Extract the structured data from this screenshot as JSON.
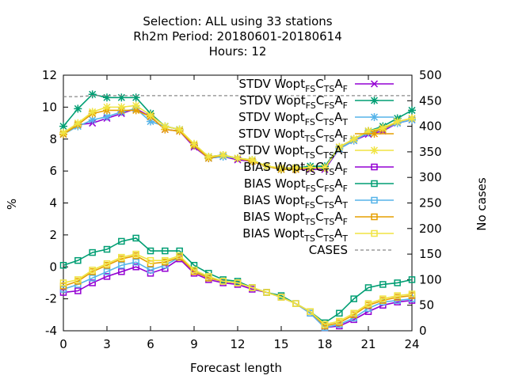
{
  "chart_data": {
    "type": "line",
    "title_lines": [
      "Selection: ALL using    33 stations",
      "Rh2m   Period: 20180601-20180614",
      "Hours:  12"
    ],
    "xlabel": "Forecast length",
    "ylabel": "%",
    "y2label": "No cases",
    "xlim": [
      0,
      24
    ],
    "ylim": [
      -4,
      12
    ],
    "y2lim": [
      0,
      500
    ],
    "xticks": [
      0,
      3,
      6,
      9,
      12,
      15,
      18,
      21,
      24
    ],
    "yticks": [
      -4,
      -2,
      0,
      2,
      4,
      6,
      8,
      10,
      12
    ],
    "y2ticks": [
      0,
      50,
      100,
      150,
      200,
      250,
      300,
      350,
      400,
      450,
      500
    ],
    "legend_position": "top-right",
    "x": [
      0,
      1,
      2,
      3,
      4,
      5,
      6,
      7,
      8,
      9,
      10,
      11,
      12,
      13,
      14,
      15,
      16,
      17,
      18,
      19,
      20,
      21,
      22,
      23,
      24
    ],
    "series": [
      {
        "name_parts": [
          "STDV Wopt",
          "FS",
          "C",
          "TS",
          "A",
          "F"
        ],
        "color": "#9400d3",
        "marker": "x",
        "axis": "y1",
        "values": [
          8.3,
          8.9,
          9.0,
          9.3,
          9.6,
          9.9,
          9.4,
          8.6,
          8.5,
          7.5,
          6.8,
          6.9,
          6.7,
          6.6,
          6.3,
          6.1,
          6.1,
          6.1,
          6.1,
          7.4,
          7.9,
          8.3,
          8.5,
          9.0,
          9.2
        ]
      },
      {
        "name_parts": [
          "STDV Wopt",
          "FS",
          "C",
          "FS",
          "A",
          "F"
        ],
        "color": "#009e73",
        "marker": "*",
        "axis": "y1",
        "values": [
          8.8,
          9.9,
          10.8,
          10.6,
          10.6,
          10.6,
          9.6,
          8.8,
          8.6,
          7.6,
          6.9,
          7.0,
          6.8,
          6.7,
          6.3,
          6.1,
          6.2,
          6.3,
          6.3,
          7.5,
          8.0,
          8.5,
          8.8,
          9.3,
          9.8
        ]
      },
      {
        "name_parts": [
          "STDV Wopt",
          "FS",
          "C",
          "TS",
          "A",
          "T"
        ],
        "color": "#56b4e9",
        "marker": "*",
        "axis": "y1",
        "values": [
          8.3,
          8.8,
          9.2,
          9.4,
          9.7,
          9.9,
          9.1,
          8.8,
          8.6,
          7.6,
          6.8,
          6.9,
          6.8,
          6.6,
          6.3,
          6.1,
          6.1,
          6.2,
          6.2,
          7.4,
          7.9,
          8.4,
          8.6,
          9.0,
          9.2
        ]
      },
      {
        "name_parts": [
          "STDV Wopt",
          "TS",
          "C",
          "TS",
          "A",
          "F"
        ],
        "color": "#e69f00",
        "marker": "*",
        "axis": "y1",
        "values": [
          8.3,
          8.9,
          9.6,
          9.8,
          9.8,
          9.8,
          9.4,
          8.6,
          8.5,
          7.6,
          6.8,
          7.0,
          6.8,
          6.6,
          6.3,
          6.1,
          6.1,
          6.2,
          6.2,
          7.5,
          8.0,
          8.5,
          8.6,
          9.1,
          9.3
        ]
      },
      {
        "name_parts": [
          "STDV Wopt",
          "TS",
          "C",
          "TS",
          "A",
          "T"
        ],
        "color": "#f0e442",
        "marker": "*",
        "axis": "y1",
        "values": [
          8.4,
          9.0,
          9.7,
          10.0,
          10.0,
          10.1,
          9.5,
          8.8,
          8.6,
          7.7,
          6.9,
          7.0,
          6.8,
          6.7,
          6.3,
          6.2,
          6.2,
          6.2,
          6.2,
          7.5,
          8.0,
          8.5,
          8.7,
          9.1,
          9.3
        ]
      },
      {
        "name_parts": [
          "BIAS Wopt",
          "FS",
          "C",
          "TS",
          "A",
          "F"
        ],
        "color": "#9400d3",
        "marker": "sq",
        "axis": "y1",
        "values": [
          -1.6,
          -1.5,
          -1.0,
          -0.6,
          -0.3,
          0.0,
          -0.4,
          -0.1,
          0.5,
          -0.4,
          -0.8,
          -1.0,
          -1.1,
          -1.4,
          -1.6,
          -1.9,
          -2.3,
          -2.9,
          -3.8,
          -3.7,
          -3.3,
          -2.8,
          -2.4,
          -2.2,
          -2.1
        ]
      },
      {
        "name_parts": [
          "BIAS Wopt",
          "FS",
          "C",
          "FS",
          "A",
          "F"
        ],
        "color": "#009e73",
        "marker": "sq",
        "axis": "y1",
        "values": [
          0.1,
          0.4,
          0.9,
          1.1,
          1.6,
          1.8,
          1.0,
          1.0,
          1.0,
          0.1,
          -0.4,
          -0.8,
          -0.9,
          -1.3,
          -1.6,
          -1.8,
          -2.3,
          -2.8,
          -3.5,
          -2.9,
          -2.0,
          -1.3,
          -1.1,
          -1.0,
          -0.8
        ]
      },
      {
        "name_parts": [
          "BIAS Wopt",
          "FS",
          "C",
          "TS",
          "A",
          "T"
        ],
        "color": "#56b4e9",
        "marker": "sq",
        "axis": "y1",
        "values": [
          -1.4,
          -1.1,
          -0.7,
          -0.3,
          0.1,
          0.3,
          -0.2,
          0.1,
          0.6,
          -0.2,
          -0.7,
          -0.9,
          -1.0,
          -1.3,
          -1.6,
          -1.9,
          -2.3,
          -2.9,
          -3.8,
          -3.6,
          -3.2,
          -2.6,
          -2.2,
          -2.1,
          -2.0
        ]
      },
      {
        "name_parts": [
          "BIAS Wopt",
          "TS",
          "C",
          "TS",
          "A",
          "F"
        ],
        "color": "#e69f00",
        "marker": "sq",
        "axis": "y1",
        "values": [
          -1.2,
          -0.9,
          -0.3,
          0.1,
          0.5,
          0.7,
          0.2,
          0.3,
          0.6,
          -0.3,
          -0.7,
          -0.9,
          -1.0,
          -1.3,
          -1.6,
          -1.9,
          -2.3,
          -2.8,
          -3.7,
          -3.5,
          -3.0,
          -2.4,
          -2.1,
          -1.9,
          -1.8
        ]
      },
      {
        "name_parts": [
          "BIAS Wopt",
          "TS",
          "C",
          "TS",
          "A",
          "T"
        ],
        "color": "#f0e442",
        "marker": "sq",
        "axis": "y1",
        "values": [
          -1.0,
          -0.8,
          -0.2,
          0.2,
          0.6,
          0.8,
          0.4,
          0.4,
          0.7,
          -0.2,
          -0.6,
          -0.9,
          -1.0,
          -1.3,
          -1.6,
          -1.9,
          -2.3,
          -2.8,
          -3.6,
          -3.4,
          -2.9,
          -2.3,
          -2.0,
          -1.8,
          -1.7
        ]
      },
      {
        "name_parts": [
          "CASES"
        ],
        "color": "#888888",
        "marker": "none",
        "dashed": true,
        "axis": "y2",
        "values": [
          458,
          458,
          460,
          460,
          460,
          460,
          460,
          460,
          460,
          460,
          460,
          460,
          460,
          460,
          460,
          460,
          460,
          460,
          460,
          460,
          460,
          460,
          460,
          460,
          460
        ]
      }
    ]
  }
}
